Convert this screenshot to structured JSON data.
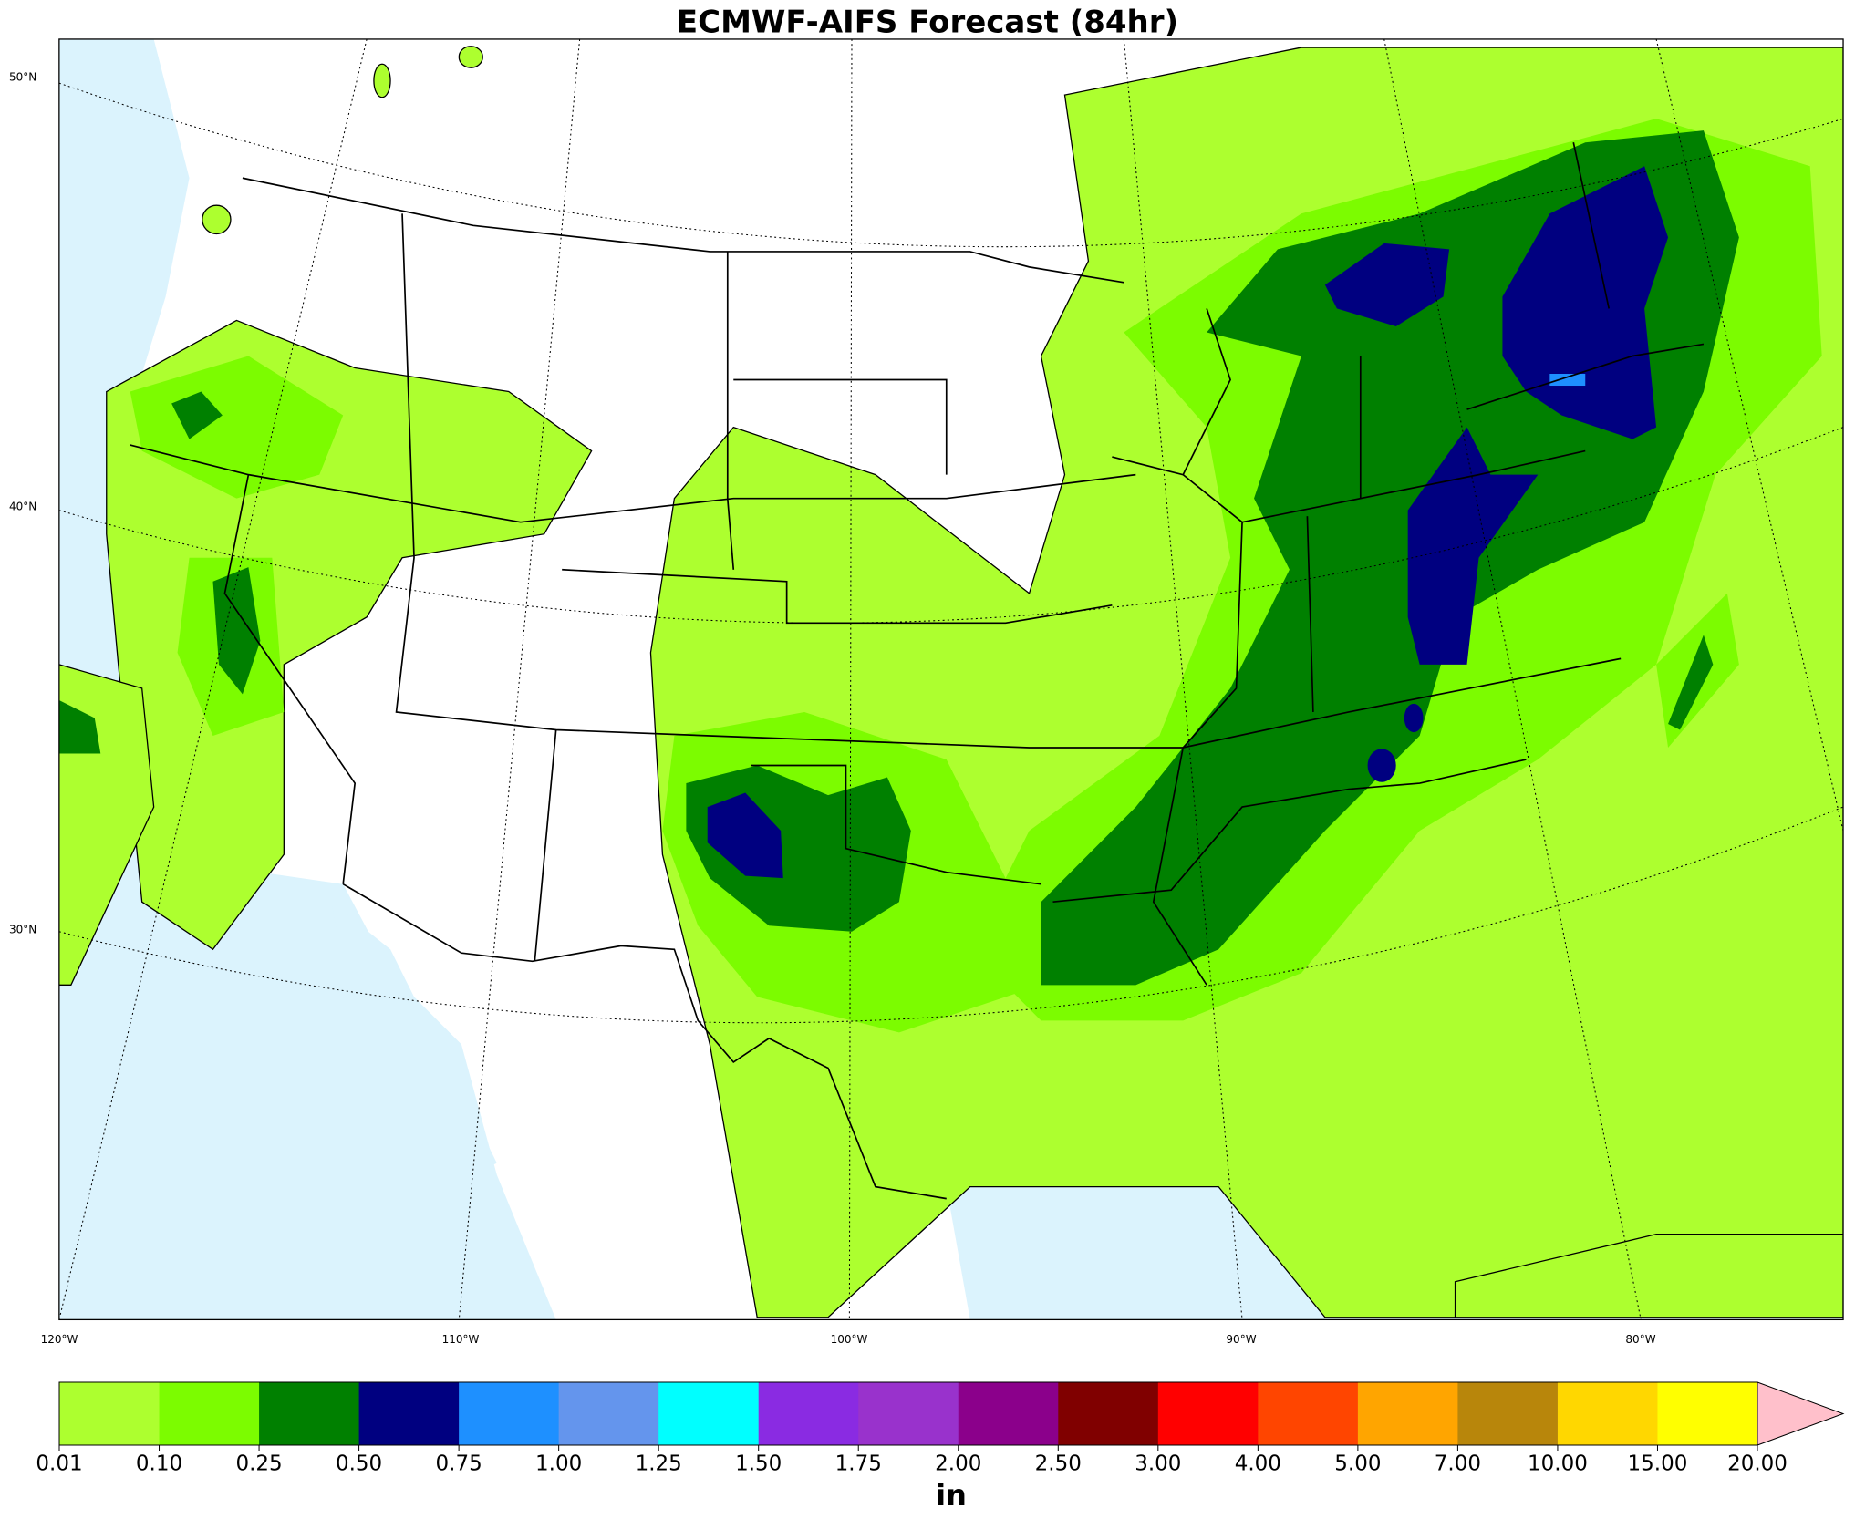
{
  "title": "ECMWF-AIFS Forecast (84hr)",
  "map": {
    "lat_labels": [
      "50°N",
      "40°N",
      "30°N"
    ],
    "lon_labels": [
      "120°W",
      "110°W",
      "100°W",
      "90°W",
      "80°W"
    ]
  },
  "colorbar": {
    "levels": [
      0.01,
      {
        "value": 0.1,
        "label": "0.10"
      },
      0.25,
      {
        "value": 0.5,
        "label": "0.50"
      },
      0.75,
      {
        "value": 1,
        "label": "1.00"
      },
      1.25,
      {
        "value": 1.5,
        "label": "1.50"
      },
      1.75,
      {
        "value": 2,
        "label": "2.00"
      },
      {
        "value": 2.5,
        "label": "2.50"
      },
      {
        "value": 3,
        "label": "3.00"
      },
      {
        "value": 4,
        "label": "4.00"
      },
      {
        "value": 5,
        "label": "5.00"
      },
      {
        "value": 7,
        "label": "7.00"
      },
      {
        "value": 10,
        "label": "10.00"
      },
      {
        "value": 15,
        "label": "15.00"
      },
      {
        "value": 20,
        "label": "20.00"
      }
    ],
    "colors": [
      "#adff2f",
      "#7cfc00",
      "#008000",
      "#000080",
      "#1e90ff",
      "#6495ed",
      "#00ffff",
      "#8a2be2",
      "#9932cc",
      "#8b008b",
      "#800000",
      "#ff0000",
      "#ff4500",
      "#ffa500",
      "#b8860b",
      "#ffd700",
      "#ffff00"
    ],
    "extend_color": "#ffc0cb",
    "label": "in"
  }
}
